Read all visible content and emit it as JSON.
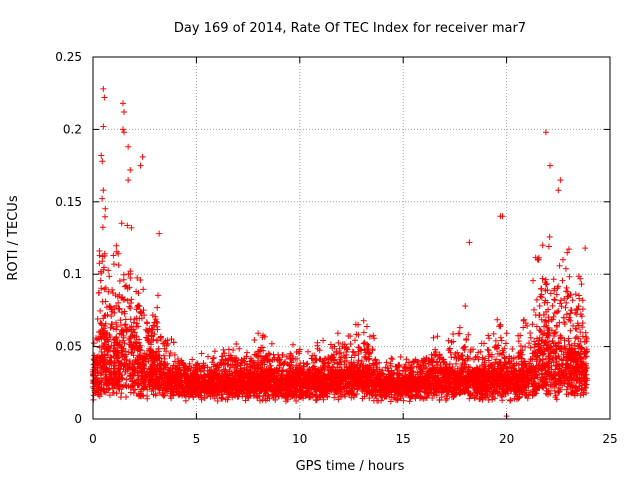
{
  "chart_data": {
    "type": "scatter",
    "title": "Day 169 of 2014, Rate Of TEC Index for receiver mar7",
    "xlabel": "GPS time / hours",
    "ylabel": "ROTI / TECUs",
    "xlim": [
      0,
      25
    ],
    "ylim": [
      0,
      0.25
    ],
    "xticks": [
      0,
      5,
      10,
      15,
      20,
      25
    ],
    "xtick_labels": [
      "0",
      "5",
      "10",
      "15",
      "20",
      "25"
    ],
    "yticks": [
      0,
      0.05,
      0.1,
      0.15,
      0.2,
      0.25
    ],
    "ytick_labels": [
      "0",
      "0.05",
      "0.1",
      "0.15",
      "0.2",
      "0.25"
    ],
    "grid": true,
    "marker": "+",
    "marker_color": "#ff0000",
    "data_range_hours": [
      0.0,
      23.9
    ],
    "series": [
      {
        "name": "ROTI",
        "envelope_note": "upper envelope of the dense point cloud (hours, ROTI)",
        "upper_envelope": [
          [
            0.0,
            0.06
          ],
          [
            0.3,
            0.12
          ],
          [
            0.5,
            0.17
          ],
          [
            0.8,
            0.13
          ],
          [
            1.2,
            0.12
          ],
          [
            1.5,
            0.15
          ],
          [
            1.8,
            0.14
          ],
          [
            2.0,
            0.13
          ],
          [
            2.3,
            0.1
          ],
          [
            2.7,
            0.09
          ],
          [
            3.0,
            0.1
          ],
          [
            3.3,
            0.08
          ],
          [
            3.7,
            0.06
          ],
          [
            4.0,
            0.05
          ],
          [
            5.0,
            0.045
          ],
          [
            6.0,
            0.05
          ],
          [
            7.0,
            0.055
          ],
          [
            8.0,
            0.06
          ],
          [
            9.0,
            0.055
          ],
          [
            10.0,
            0.05
          ],
          [
            11.0,
            0.055
          ],
          [
            12.0,
            0.06
          ],
          [
            12.5,
            0.065
          ],
          [
            13.0,
            0.07
          ],
          [
            13.5,
            0.06
          ],
          [
            14.0,
            0.04
          ],
          [
            15.0,
            0.045
          ],
          [
            16.0,
            0.055
          ],
          [
            17.0,
            0.06
          ],
          [
            18.0,
            0.065
          ],
          [
            19.0,
            0.06
          ],
          [
            19.5,
            0.07
          ],
          [
            20.0,
            0.06
          ],
          [
            20.5,
            0.055
          ],
          [
            21.0,
            0.08
          ],
          [
            21.5,
            0.12
          ],
          [
            22.0,
            0.14
          ],
          [
            22.5,
            0.13
          ],
          [
            23.0,
            0.12
          ],
          [
            23.5,
            0.1
          ],
          [
            23.9,
            0.08
          ]
        ],
        "outliers": [
          [
            0.5,
            0.228
          ],
          [
            0.55,
            0.222
          ],
          [
            0.5,
            0.202
          ],
          [
            1.45,
            0.218
          ],
          [
            1.5,
            0.212
          ],
          [
            1.45,
            0.2
          ],
          [
            1.5,
            0.198
          ],
          [
            0.4,
            0.182
          ],
          [
            0.45,
            0.178
          ],
          [
            1.7,
            0.188
          ],
          [
            2.4,
            0.181
          ],
          [
            2.3,
            0.175
          ],
          [
            1.8,
            0.172
          ],
          [
            1.7,
            0.165
          ],
          [
            0.5,
            0.158
          ],
          [
            3.2,
            0.128
          ],
          [
            19.7,
            0.14
          ],
          [
            19.8,
            0.14
          ],
          [
            18.2,
            0.122
          ],
          [
            21.9,
            0.198
          ],
          [
            22.1,
            0.175
          ],
          [
            22.6,
            0.165
          ],
          [
            22.5,
            0.158
          ],
          [
            23.8,
            0.118
          ],
          [
            18.0,
            0.078
          ],
          [
            20.0,
            0.002
          ]
        ]
      }
    ]
  }
}
